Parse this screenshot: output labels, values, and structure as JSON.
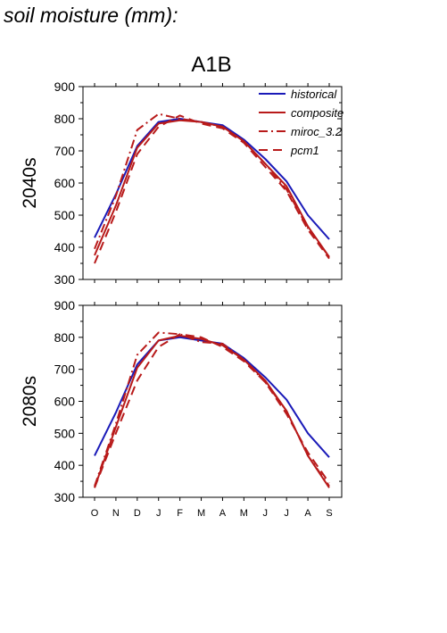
{
  "page_title": "soil moisture (mm):",
  "chart_data": {
    "type": "line",
    "title": "A1B",
    "categories": [
      "O",
      "N",
      "D",
      "J",
      "F",
      "M",
      "A",
      "M",
      "J",
      "J",
      "A",
      "S"
    ],
    "ylim": [
      300,
      900
    ],
    "yticks": [
      300,
      400,
      500,
      600,
      700,
      800,
      900
    ],
    "grid": false,
    "legend_position": "top-right",
    "legend": [
      {
        "name": "historical",
        "color": "#1a1ab8",
        "dash": "solid"
      },
      {
        "name": "composite",
        "color": "#b81a1a",
        "dash": "solid"
      },
      {
        "name": "miroc_3.2",
        "color": "#b81a1a",
        "dash": "dashdot"
      },
      {
        "name": "pcm1",
        "color": "#b81a1a",
        "dash": "dashed"
      }
    ],
    "panels": [
      {
        "ylabel": "2040s",
        "series": [
          {
            "name": "historical",
            "values": [
              430,
              565,
              715,
              790,
              800,
              790,
              780,
              735,
              675,
              605,
              500,
              425
            ]
          },
          {
            "name": "composite",
            "values": [
              375,
              530,
              710,
              785,
              795,
              790,
              775,
              730,
              660,
              590,
              465,
              370
            ]
          },
          {
            "name": "miroc_3.2",
            "values": [
              395,
              560,
              765,
              815,
              800,
              790,
              775,
              730,
              660,
              580,
              460,
              370
            ]
          },
          {
            "name": "pcm1",
            "values": [
              350,
              510,
              690,
              775,
              810,
              785,
              770,
              725,
              650,
              575,
              455,
              365
            ]
          }
        ]
      },
      {
        "ylabel": "2080s",
        "series": [
          {
            "name": "historical",
            "values": [
              430,
              565,
              715,
              790,
              800,
              790,
              780,
              735,
              675,
              605,
              500,
              425
            ]
          },
          {
            "name": "composite",
            "values": [
              330,
              520,
              705,
              790,
              805,
              795,
              775,
              730,
              665,
              570,
              430,
              330
            ]
          },
          {
            "name": "miroc_3.2",
            "values": [
              335,
              530,
              745,
              815,
              810,
              785,
              780,
              730,
              660,
              570,
              430,
              335
            ]
          },
          {
            "name": "pcm1",
            "values": [
              330,
              500,
              665,
              770,
              810,
              800,
              770,
              725,
              660,
              560,
              440,
              345
            ]
          }
        ]
      }
    ]
  }
}
